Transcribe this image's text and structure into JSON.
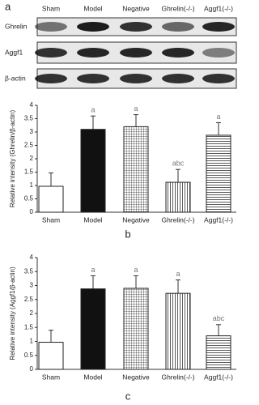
{
  "blot": {
    "label": "a",
    "lanes": [
      "Sham",
      "Model",
      "Negative",
      "Ghrelin(-/-)",
      "Aggf1(-/-)"
    ],
    "rows": [
      "Ghrelin",
      "Aggf1",
      "β-actin"
    ]
  },
  "chart_data": [
    {
      "type": "bar",
      "panel": "b",
      "ylabel": "Relative intensity (Ghrelin/β-actin)",
      "categories": [
        "Sham",
        "Model",
        "Negative",
        "Ghrelin(-/-)",
        "Aggf1(-/-)"
      ],
      "values": [
        0.97,
        3.1,
        3.2,
        1.12,
        2.88
      ],
      "errors": [
        0.5,
        0.5,
        0.45,
        0.48,
        0.47
      ],
      "annotations": [
        null,
        "a",
        "a",
        "abc",
        "a"
      ],
      "fills": [
        "white",
        "black",
        "grid",
        "vertical",
        "horizontal"
      ],
      "ylim": [
        0,
        4
      ],
      "yticks": [
        0,
        0.5,
        1,
        1.5,
        2,
        2.5,
        3,
        3.5,
        4
      ]
    },
    {
      "type": "bar",
      "panel": "c",
      "ylabel": "Relative intensity (Aggf1/β-actin)",
      "categories": [
        "Sham",
        "Model",
        "Negative",
        "Ghrelin(-/-)",
        "Aggf1(-/-)"
      ],
      "values": [
        0.97,
        2.88,
        2.9,
        2.72,
        1.2
      ],
      "errors": [
        0.43,
        0.47,
        0.45,
        0.48,
        0.4
      ],
      "annotations": [
        null,
        "a",
        "a",
        "a",
        "abc"
      ],
      "fills": [
        "white",
        "black",
        "grid",
        "vertical",
        "horizontal"
      ],
      "ylim": [
        0,
        4
      ],
      "yticks": [
        0,
        0.5,
        1,
        1.5,
        2,
        2.5,
        3,
        3.5,
        4
      ]
    }
  ]
}
